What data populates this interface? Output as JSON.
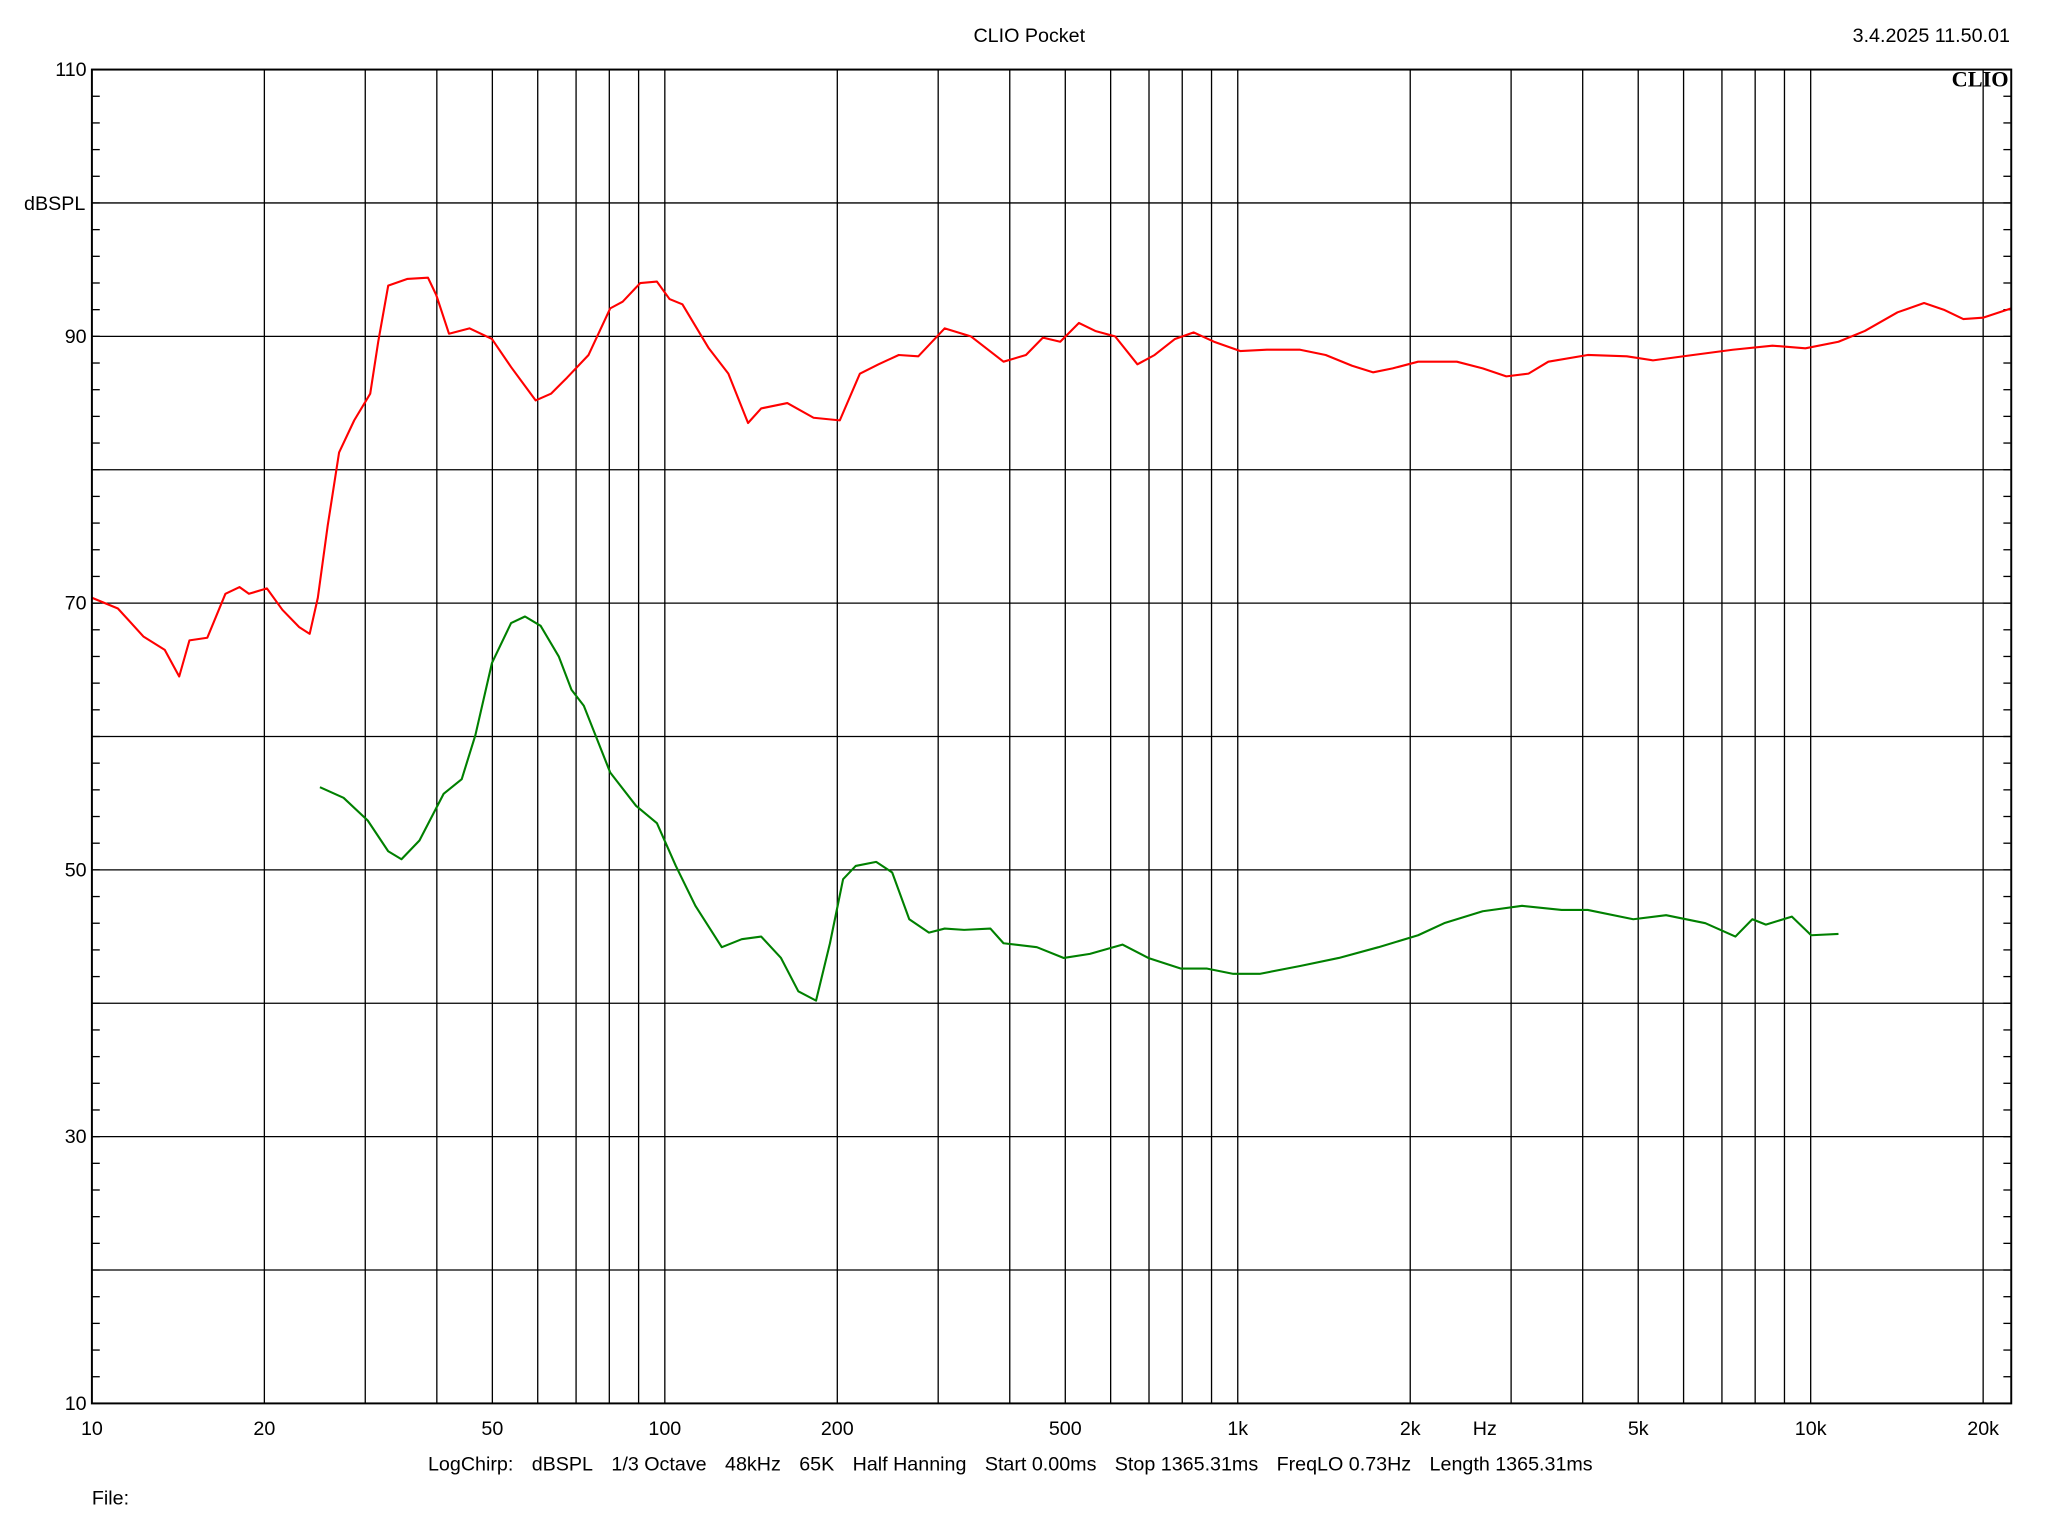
{
  "header": {
    "title": "CLIO Pocket",
    "timestamp": "3.4.2025 11.50.01",
    "logo": "CLIO"
  },
  "footer": {
    "settings": [
      "LogChirp:",
      "dBSPL",
      "1/3 Octave",
      "48kHz",
      "65K",
      "Half Hanning",
      "Start 0.00ms",
      "Stop 1365.31ms",
      "FreqLO 0.73Hz",
      "Length 1365.31ms"
    ],
    "file_label": "File:"
  },
  "chart_data": {
    "type": "line",
    "title": "CLIO Pocket",
    "xlabel": "Hz",
    "ylabel": "dBSPL",
    "xscale": "log",
    "xlim": [
      10,
      22390
    ],
    "ylim": [
      10,
      110
    ],
    "grid": true,
    "x_ticks": [
      {
        "value": 10,
        "label": "10"
      },
      {
        "value": 20,
        "label": "20"
      },
      {
        "value": 50,
        "label": "50"
      },
      {
        "value": 100,
        "label": "100"
      },
      {
        "value": 200,
        "label": "200"
      },
      {
        "value": 500,
        "label": "500"
      },
      {
        "value": 1000,
        "label": "1k"
      },
      {
        "value": 2000,
        "label": "2k"
      },
      {
        "value": 5000,
        "label": "5k"
      },
      {
        "value": 10000,
        "label": "10k"
      },
      {
        "value": 20000,
        "label": "20k"
      }
    ],
    "y_ticks": [
      {
        "value": 10,
        "label": "10"
      },
      {
        "value": 30,
        "label": "30"
      },
      {
        "value": 50,
        "label": "50"
      },
      {
        "value": 70,
        "label": "70"
      },
      {
        "value": 90,
        "label": "90"
      },
      {
        "value": 110,
        "label": "110"
      }
    ],
    "series": [
      {
        "color": "#ff0000",
        "x": [
          10,
          11.1,
          12.3,
          13.4,
          14.2,
          14.8,
          15.9,
          17.1,
          18.1,
          18.8,
          20.2,
          21.5,
          23.0,
          24.0,
          24.8,
          25.8,
          27.0,
          28.7,
          30.6,
          31.6,
          32.9,
          35.5,
          38.6,
          39.9,
          42.0,
          45.6,
          49.9,
          53.9,
          59.5,
          63.3,
          67.5,
          73.6,
          80.3,
          84.4,
          90.6,
          96.9,
          101.9,
          107.3,
          119.3,
          129.1,
          139.7,
          147.3,
          163.6,
          181.8,
          202,
          219,
          236,
          256,
          277,
          308,
          342,
          390,
          427,
          457,
          490,
          528,
          564,
          611,
          668,
          716,
          777,
          838,
          909,
          1010,
          1124,
          1285,
          1424,
          1583,
          1724,
          1864,
          2064,
          2412,
          2676,
          2943,
          3217,
          3485,
          4081,
          4776,
          5306,
          6232,
          7309,
          8574,
          9787,
          11180,
          12430,
          14180,
          15770,
          17070,
          18470,
          19980,
          22390
        ],
        "y": [
          70.4,
          69.6,
          67.5,
          66.5,
          64.5,
          67.2,
          67.4,
          70.7,
          71.2,
          70.7,
          71.1,
          69.5,
          68.2,
          67.7,
          70.4,
          75.8,
          81.3,
          83.7,
          85.7,
          89.6,
          93.8,
          94.3,
          94.4,
          93.1,
          90.2,
          90.6,
          89.8,
          87.7,
          85.2,
          85.7,
          86.9,
          88.6,
          92.1,
          92.6,
          94.0,
          94.1,
          92.8,
          92.4,
          89.1,
          87.2,
          83.5,
          84.6,
          85.0,
          83.9,
          83.7,
          87.2,
          87.9,
          88.6,
          88.5,
          90.6,
          90.0,
          88.1,
          88.6,
          89.9,
          89.6,
          91.0,
          90.4,
          90.0,
          87.9,
          88.6,
          89.8,
          90.3,
          89.6,
          88.9,
          89.0,
          89.0,
          88.6,
          87.8,
          87.3,
          87.6,
          88.1,
          88.1,
          87.6,
          87.0,
          87.2,
          88.1,
          88.6,
          88.5,
          88.2,
          88.6,
          89.0,
          89.3,
          89.1,
          89.6,
          90.4,
          91.8,
          92.5,
          92.0,
          91.3,
          91.4,
          92.1
        ]
      },
      {
        "color": "#008000",
        "x": [
          25.0,
          27.5,
          30.3,
          32.9,
          34.7,
          37.3,
          41.1,
          44.2,
          46.7,
          49.9,
          53.9,
          57.0,
          60.7,
          65.3,
          68.7,
          72.2,
          80.3,
          89.1,
          96.9,
          104.5,
          113.1,
          125.7,
          136.2,
          147.3,
          159.5,
          171.0,
          183.6,
          194.2,
          204.7,
          215.4,
          233.8,
          249.4,
          267.1,
          289,
          308,
          333,
          370,
          390,
          446,
          497,
          552,
          629,
          698,
          796,
          884,
          982,
          1092,
          1285,
          1501,
          1760,
          2064,
          2293,
          2676,
          3135,
          3675,
          4081,
          4901,
          5593,
          6550,
          7390,
          7910,
          8350,
          9270,
          10020,
          11180
        ],
        "y": [
          56.2,
          55.4,
          53.7,
          51.4,
          50.8,
          52.2,
          55.7,
          56.8,
          60.1,
          65.5,
          68.5,
          69.0,
          68.3,
          66.0,
          63.5,
          62.3,
          57.3,
          54.8,
          53.5,
          50.3,
          47.3,
          44.2,
          44.8,
          45.0,
          43.4,
          40.9,
          40.2,
          44.5,
          49.3,
          50.3,
          50.6,
          49.8,
          46.3,
          45.3,
          45.6,
          45.5,
          45.6,
          44.5,
          44.2,
          43.4,
          43.7,
          44.4,
          43.4,
          42.6,
          42.6,
          42.2,
          42.2,
          42.8,
          43.4,
          44.2,
          45.1,
          46.0,
          46.9,
          47.3,
          47.0,
          47.0,
          46.3,
          46.6,
          46.0,
          45.0,
          46.3,
          45.9,
          46.5,
          45.1,
          45.2
        ]
      }
    ]
  }
}
